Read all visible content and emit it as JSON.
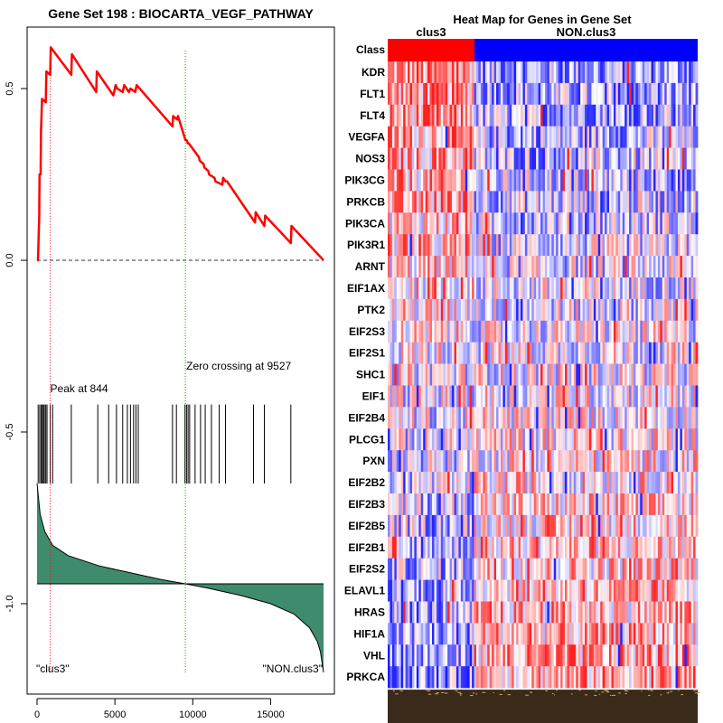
{
  "colors": {
    "es_line": "#ff0000",
    "peak_line": "#ff0000",
    "zero_line": "#00aa00",
    "ranked_fill": "#3f8b6e",
    "class_pos": "#ff0000",
    "class_neg": "#0000ff",
    "heat_high": "#ff0000",
    "heat_low": "#0000ff"
  },
  "chart_data": [
    {
      "type": "line",
      "title": "Gene Set  198 : BIOCARTA_VEGF_PATHWAY",
      "xlim": [
        0,
        18400
      ],
      "ylim": [
        -1.2,
        0.63
      ],
      "x_ticks": [
        0,
        5000,
        10000,
        15000
      ],
      "x_tick_labels": [
        "0",
        "5000",
        "10000",
        "15000"
      ],
      "y_ticks": [
        0.5,
        0.0,
        -0.5,
        -1.0
      ],
      "y_tick_labels": [
        "0.5",
        "0.0",
        "-0.5",
        "-1.0"
      ],
      "es_curve": {
        "x": [
          0,
          60,
          140,
          160,
          230,
          250,
          320,
          560,
          600,
          844,
          880,
          2200,
          2240,
          3800,
          3840,
          4900,
          5050,
          5150,
          5500,
          5600,
          5900,
          6000,
          6300,
          6400,
          8700,
          8740,
          9000,
          9050,
          9527,
          9600,
          9700,
          9750,
          10400,
          10450,
          10700,
          10750,
          11000,
          11050,
          11400,
          11450,
          11900,
          11950,
          12100,
          12200,
          14000,
          14040,
          14600,
          14650,
          16300,
          16340,
          18400
        ],
        "y": [
          0.0,
          0.0,
          0.13,
          0.25,
          0.25,
          0.37,
          0.47,
          0.46,
          0.55,
          0.54,
          0.62,
          0.54,
          0.6,
          0.49,
          0.55,
          0.48,
          0.51,
          0.5,
          0.49,
          0.51,
          0.49,
          0.5,
          0.49,
          0.51,
          0.39,
          0.42,
          0.41,
          0.42,
          0.35,
          0.35,
          0.34,
          0.34,
          0.3,
          0.29,
          0.28,
          0.27,
          0.26,
          0.25,
          0.24,
          0.23,
          0.22,
          0.24,
          0.23,
          0.23,
          0.11,
          0.14,
          0.1,
          0.13,
          0.05,
          0.1,
          0.0
        ]
      },
      "peak": {
        "x": 844,
        "label": "Peak at 844"
      },
      "zero_crossing": {
        "x": 9527,
        "label": "Zero crossing at 9527"
      },
      "hits": [
        70,
        170,
        260,
        340,
        400,
        470,
        560,
        640,
        844,
        1000,
        2200,
        3900,
        4600,
        5100,
        5500,
        5800,
        6000,
        6200,
        6350,
        6500,
        8700,
        8950,
        9500,
        9600,
        9700,
        9800,
        10150,
        10500,
        10800,
        11200,
        11700,
        12100,
        13900,
        14600,
        16300
      ],
      "hits_y_range": [
        -0.42,
        -0.65
      ],
      "ranked_metric": {
        "x": [
          0,
          200,
          500,
          1000,
          2000,
          4000,
          6000,
          8000,
          9527,
          11000,
          13000,
          15000,
          16500,
          17500,
          18000,
          18200,
          18400
        ],
        "y": [
          -0.65,
          -0.74,
          -0.79,
          -0.83,
          -0.86,
          -0.89,
          -0.91,
          -0.93,
          -0.942,
          -0.955,
          -0.975,
          -1.0,
          -1.03,
          -1.07,
          -1.11,
          -1.14,
          -1.2
        ]
      },
      "ranked_baseline": -0.942,
      "left_label": "\"clus3\"",
      "right_label": "\"NON.clus3\""
    },
    {
      "type": "heatmap",
      "title": "Heat Map for Genes in Gene Set",
      "class_row_label": "Class",
      "class_groups": [
        {
          "label": "clus3",
          "fraction": 0.28
        },
        {
          "label": "NON.clus3",
          "fraction": 0.72
        }
      ],
      "genes": [
        "KDR",
        "FLT1",
        "FLT4",
        "VEGFA",
        "NOS3",
        "PIK3CG",
        "PRKCB",
        "PIK3CA",
        "PIK3R1",
        "ARNT",
        "EIF1AX",
        "PTK2",
        "EIF2S3",
        "EIF2S1",
        "SHC1",
        "EIF1",
        "EIF2B4",
        "PLCG1",
        "PXN",
        "EIF2B2",
        "EIF2B3",
        "EIF2B5",
        "EIF2B1",
        "EIF2S2",
        "ELAVL1",
        "HRAS",
        "HIF1A",
        "VHL",
        "PRKCA"
      ]
    }
  ]
}
